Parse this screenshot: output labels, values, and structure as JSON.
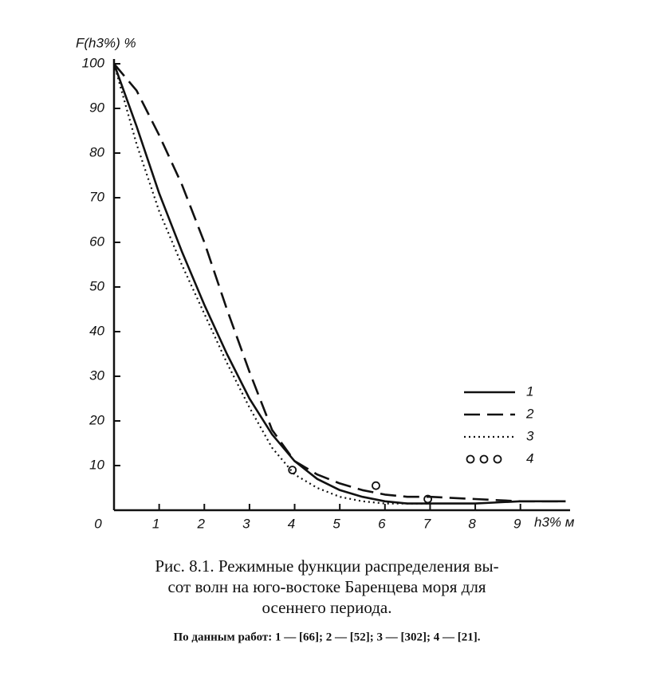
{
  "chart_data": {
    "type": "line",
    "y_label": "F(h3%) %",
    "x_label": "h3% м",
    "x": [
      0,
      0.5,
      1,
      1.5,
      2,
      2.5,
      3,
      3.5,
      4,
      4.5,
      5,
      5.5,
      6,
      6.5,
      7,
      8,
      9,
      10
    ],
    "xlim": [
      0,
      10.1
    ],
    "ylim": [
      0,
      100
    ],
    "xticks": [
      0,
      1,
      2,
      3,
      4,
      5,
      6,
      7,
      8,
      9
    ],
    "yticks": [
      10,
      20,
      30,
      40,
      50,
      60,
      70,
      80,
      90,
      100
    ],
    "legend": "right",
    "series": [
      {
        "name": "1",
        "color": "#111111",
        "style": "solid",
        "values": [
          100,
          86,
          71,
          58,
          46,
          35,
          25,
          17,
          11,
          7,
          4.5,
          3,
          2,
          1.5,
          1.5,
          1.5,
          2,
          2
        ]
      },
      {
        "name": "2",
        "color": "#111111",
        "style": "dashed",
        "values": [
          100,
          94,
          84,
          73,
          60,
          45,
          31,
          18,
          11,
          8,
          6,
          4.5,
          3.5,
          3,
          3,
          2.5,
          2,
          2
        ]
      },
      {
        "name": "3",
        "color": "#111111",
        "style": "dotted",
        "values": [
          100,
          82,
          67,
          55,
          44,
          33,
          23,
          14,
          8,
          5,
          3,
          2,
          1.5,
          1.5,
          1.5,
          null,
          null,
          null
        ]
      },
      {
        "name": "4",
        "color": "#111111",
        "style": "circles",
        "x": [
          3.95,
          5.8,
          6.95
        ],
        "values": [
          9,
          5.5,
          2.5
        ]
      }
    ]
  },
  "caption": {
    "lines": [
      "Рис. 8.1. Режимные функции распределения вы-",
      "сот волн на юго-востоке Баренцева моря для",
      "осеннего периода."
    ],
    "source": "По данным работ: 1 — [66]; 2 — [52]; 3 — [302]; 4 — [21]."
  }
}
